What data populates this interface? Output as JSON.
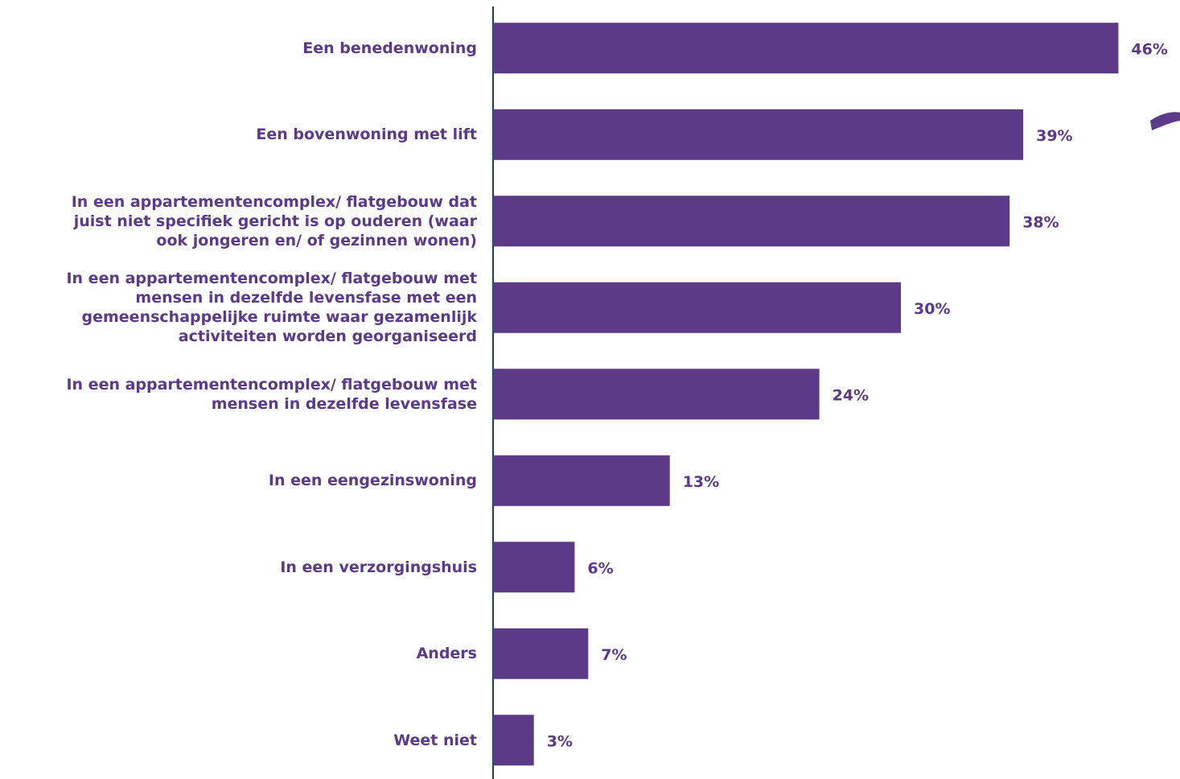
{
  "chart_data": {
    "type": "bar",
    "orientation": "horizontal",
    "color": "#5b3a87",
    "categories": [
      "Een benedenwoning",
      "Een bovenwoning met lift",
      "In een appartementencomplex/ flatgebouw dat\njuist niet specifiek gericht is op ouderen (waar\nook jongeren en/ of gezinnen wonen)",
      "In een appartementencomplex/ flatgebouw met\nmensen in dezelfde levensfase met een\ngemeenschappelijke ruimte waar gezamenlijk\nactiviteiten worden georganiseerd",
      "In een appartementencomplex/ flatgebouw met\nmensen in dezelfde levensfase",
      "In een eengezinswoning",
      "In een verzorgingshuis",
      "Anders",
      "Weet niet"
    ],
    "values": [
      46,
      39,
      38,
      30,
      24,
      13,
      6,
      7,
      3
    ],
    "value_labels": [
      "46%",
      "39%",
      "38%",
      "30%",
      "24%",
      "13%",
      "6%",
      "7%",
      "3%"
    ],
    "xlim": [
      0,
      50
    ]
  }
}
